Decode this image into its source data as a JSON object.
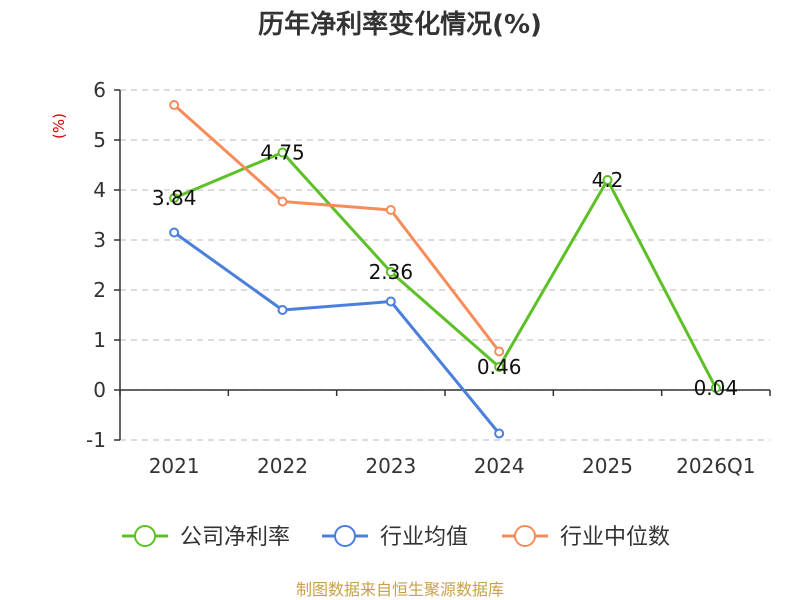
{
  "chart_data": {
    "type": "line",
    "title": "历年净利率变化情况(%)",
    "ylabel": "(%)",
    "categories": [
      "2021",
      "2022",
      "2023",
      "2024",
      "2025",
      "2026Q1"
    ],
    "ylim": [
      -1,
      6
    ],
    "yticks": [
      -1,
      0,
      1,
      2,
      3,
      4,
      5,
      6
    ],
    "grid": true,
    "legend_position": "bottom",
    "series": [
      {
        "name": "公司净利率",
        "color": "#5cc026",
        "values": [
          3.84,
          4.75,
          2.36,
          0.46,
          4.2,
          0.04
        ],
        "labels": [
          "3.84",
          "4.75",
          "2.36",
          "0.46",
          "4.2",
          "0.04"
        ]
      },
      {
        "name": "行业均值",
        "color": "#4a7fdb",
        "values": [
          3.15,
          1.6,
          1.77,
          -0.87,
          null,
          null
        ]
      },
      {
        "name": "行业中位数",
        "color": "#f68c5a",
        "values": [
          5.7,
          3.77,
          3.6,
          0.77,
          null,
          null
        ]
      }
    ]
  },
  "source": "制图数据来自恒生聚源数据库"
}
